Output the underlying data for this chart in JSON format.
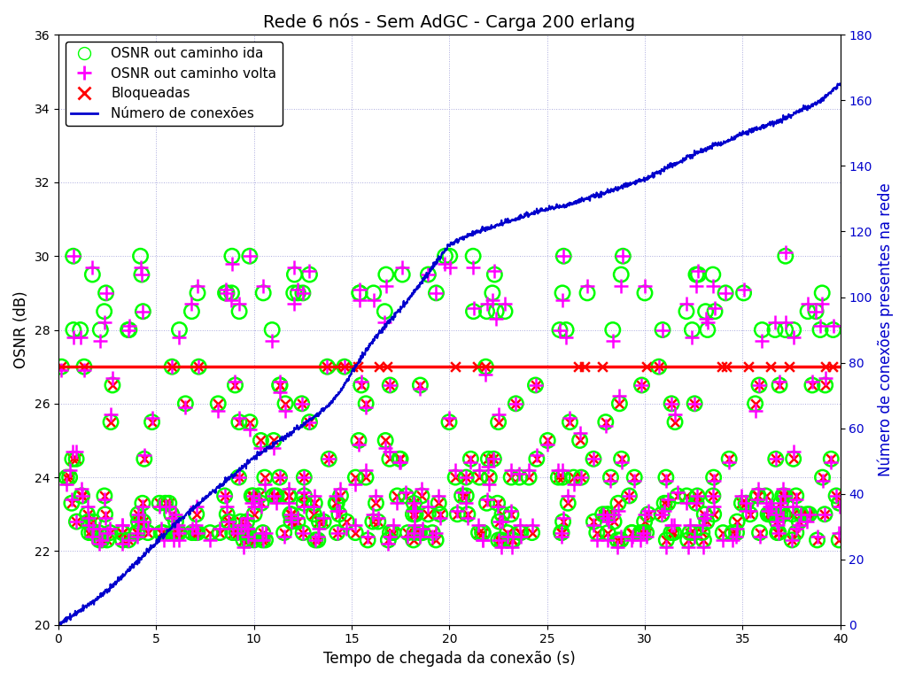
{
  "title": "Rede 6 nós - Sem AdGC - Carga 200 erlang",
  "xlabel": "Tempo de chegada da conexão (s)",
  "ylabel_left": "OSNR (dB)",
  "ylabel_right": "Número de conexões presentes na rede",
  "xlim": [
    0,
    40
  ],
  "ylim_left": [
    20,
    36
  ],
  "ylim_right": [
    0,
    180
  ],
  "hline_y": 27.0,
  "legend_labels": [
    "OSNR out caminho ida",
    "OSNR out caminho volta",
    "Bloqueadas",
    "Número de conexões"
  ],
  "background_color": "#ffffff",
  "title_fontsize": 14,
  "label_fontsize": 12,
  "legend_fontsize": 11,
  "grid_color": "#aaaadd",
  "circle_color": "#00ff00",
  "plus_color": "#ff00ff",
  "cross_color": "#ff0000",
  "line_color": "#0000cc",
  "hline_color": "#ff0000",
  "yticks_left": [
    20,
    22,
    24,
    26,
    28,
    30,
    32,
    34,
    36
  ],
  "xticks": [
    0,
    5,
    10,
    15,
    20,
    25,
    30,
    35,
    40
  ],
  "yticks_right": [
    0,
    20,
    40,
    60,
    80,
    100,
    120,
    140,
    160,
    180
  ],
  "osnr_passing_levels": [
    28.0,
    28.5,
    29.0,
    29.5,
    30.0
  ],
  "osnr_blocked_levels": [
    22.3,
    22.5,
    22.8,
    23.0,
    23.3,
    23.5,
    24.0,
    24.5,
    25.0,
    25.5,
    26.0,
    26.5,
    27.0
  ],
  "conn_keypoints_t": [
    0,
    1,
    2,
    3,
    4,
    5,
    6,
    7,
    8,
    9,
    10,
    11,
    12,
    13,
    14,
    14.5,
    15,
    16,
    17,
    18,
    19,
    20,
    21,
    22,
    23,
    24,
    25,
    26,
    27,
    28,
    29,
    30,
    31,
    32,
    33,
    34,
    35,
    36,
    37,
    38,
    39,
    40
  ],
  "conn_keypoints_v": [
    0,
    4,
    8,
    13,
    19,
    25,
    31,
    36,
    41,
    46,
    51,
    55,
    59,
    63,
    68,
    72,
    77,
    86,
    93,
    100,
    108,
    116,
    119,
    121,
    123,
    125,
    127,
    128,
    130,
    132,
    134,
    136,
    139,
    142,
    145,
    147,
    150,
    152,
    154,
    157,
    160,
    165
  ]
}
